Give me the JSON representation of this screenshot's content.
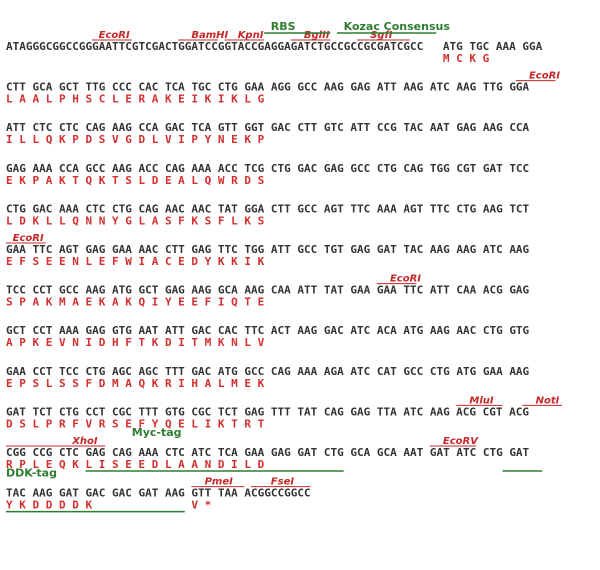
{
  "rows": [
    {
      "segments": [
        {
          "text": "ATAGGGCGGCCGGGAATTCGTCGACTGGATCCGGTACCGAGGAGATCTGCCGCCGCGATCGCC",
          "color": "#1a237e",
          "start": 0
        },
        {
          "text": "ATG TGC AAA GGA",
          "color": "#333333",
          "start": 66
        }
      ],
      "aa": [
        {
          "text": "M   C   K   G",
          "start": 66
        }
      ],
      "features": [
        {
          "name": "EcoRI",
          "kind": "enzyme",
          "label_col": 14,
          "line_from": 13,
          "line_to": 19
        },
        {
          "name": "BamHI",
          "kind": "enzyme",
          "label_col": 28,
          "line_from": 26,
          "line_to": 32
        },
        {
          "name": "KpnI",
          "kind": "enzyme",
          "label_col": 35,
          "line_from": 33,
          "line_to": 39
        },
        {
          "name": "BglII",
          "kind": "enzyme",
          "label_col": 45,
          "line_from": 43,
          "line_to": 49
        },
        {
          "name": "SgfI",
          "kind": "enzyme",
          "label_col": 55,
          "line_from": 53,
          "line_to": 61
        },
        {
          "name": "RBS",
          "kind": "tag",
          "label_col": 40,
          "line_from": 39,
          "line_to": 49
        },
        {
          "name": "Kozac Consensus",
          "kind": "tag",
          "label_col": 51,
          "line_from": 50,
          "line_to": 65
        }
      ]
    },
    {
      "segments": [
        {
          "text": "CTT GCA GCT TTG CCC CAC TCA TGC CTG GAA AGG GCC AAG GAG ATT AAG ATC AAG TTG GGA",
          "color": "#333333",
          "start": 0
        }
      ],
      "aa": [
        {
          "text": "L   A   A   L   P   H   S   C   L   E   R   A   K   E   I   K   I   K   L   G",
          "start": 0
        }
      ],
      "features": [
        {
          "name": "EcoRI",
          "kind": "enzyme",
          "label_col": 79,
          "line_from": 77,
          "line_to": 83
        }
      ]
    },
    {
      "segments": [
        {
          "text": "ATT CTC CTC CAG AAG CCA GAC TCA GTT GGT GAC CTT GTC ATT CCG TAC AAT GAG AAG CCA",
          "color": "#333333",
          "start": 0
        }
      ],
      "aa": [
        {
          "text": "I   L   L   Q   K   P   D   S   V   G   D   L   V   I   P   Y   N   E   K   P",
          "start": 0
        }
      ],
      "features": []
    },
    {
      "segments": [
        {
          "text": "GAG AAA CCA GCC AAG ACC CAG AAA ACC TCG CTG GAC GAG GCC CTG CAG TGG CGT GAT TCC",
          "color": "#333333",
          "start": 0
        }
      ],
      "aa": [
        {
          "text": "E   K   P   A   K   T   Q   K   T   S   L   D   E   A   L   Q   W   R   D   S",
          "start": 0
        }
      ],
      "features": []
    },
    {
      "segments": [
        {
          "text": "CTG GAC AAA CTC CTG CAG AAC AAC TAT GGA CTT GCC AGT TTC AAA AGT TTC CTG AAG TCT",
          "color": "#333333",
          "start": 0
        }
      ],
      "aa": [
        {
          "text": "L   D   K   L   L   Q   N   N   Y   G   L   A   S   F   K   S   F   L   K   S",
          "start": 0
        }
      ],
      "features": []
    },
    {
      "segments": [
        {
          "text": "GAA TTC AGT GAG GAA AAC CTT GAG TTC TGG ATT GCC TGT GAG GAT TAC AAG AAG ATC AAG",
          "color": "#333333",
          "start": 0
        }
      ],
      "aa": [
        {
          "text": "E   F   S   E   E   N   L   E   F   W   I   A   C   E   D   Y   K   K   I   K",
          "start": 0
        }
      ],
      "features": [
        {
          "name": "EcoRI",
          "kind": "enzyme",
          "label_col": 1,
          "line_from": 0,
          "line_to": 6
        }
      ]
    },
    {
      "segments": [
        {
          "text": "TCC CCT GCC AAG ATG GCT GAG AAG GCA AAG CAA ATT TAT GAA GAA TTC ATT CAA ACG GAG",
          "color": "#333333",
          "start": 0
        }
      ],
      "aa": [
        {
          "text": "S   P   A   K   M   A   E   K   A   K   Q   I   Y   E   E   F   I   Q   T   E",
          "start": 0
        }
      ],
      "features": [
        {
          "name": "EcoRI",
          "kind": "enzyme",
          "label_col": 58,
          "line_from": 56,
          "line_to": 62
        }
      ]
    },
    {
      "segments": [
        {
          "text": "GCT CCT AAA GAG GTG AAT ATT GAC CAC TTC ACT AAG GAC ATC ACA ATG AAG AAC CTG GTG",
          "color": "#333333",
          "start": 0
        }
      ],
      "aa": [
        {
          "text": "A   P   K   E   V   N   I   D   H   F   T   K   D   I   T   M   K   N   L   V",
          "start": 0
        }
      ],
      "features": []
    },
    {
      "segments": [
        {
          "text": "GAA CCT TCC CTG AGC AGC TTT GAC ATG GCC CAG AAA AGA ATC CAT GCC CTG ATG GAA AAG",
          "color": "#333333",
          "start": 0
        }
      ],
      "aa": [
        {
          "text": "E   P   S   L   S   S   F   D   M   A   Q   K   R   I   H   A   L   M   E   K",
          "start": 0
        }
      ],
      "features": []
    },
    {
      "segments": [
        {
          "text": "GAT TCT CTG CCT CGC TTT GTG CGC TCT GAG TTT TAT CAG GAG TTA ATC AAG",
          "color": "#333333",
          "start": 0
        },
        {
          "text": "ACG CGT ACG",
          "color": "#1a237e",
          "start": 68
        }
      ],
      "aa": [
        {
          "text": "D   S   L   P   R   F   V   R   S   E   F   Y   Q   E   L   I   K   T   R   T",
          "start": 0
        }
      ],
      "features": [
        {
          "name": "MluI",
          "kind": "enzyme",
          "label_col": 70,
          "line_from": 68,
          "line_to": 75
        },
        {
          "name": "NotI",
          "kind": "enzyme",
          "label_col": 80,
          "line_from": 78,
          "line_to": 84
        }
      ]
    },
    {
      "segments": [
        {
          "text": "CGG CCG CTC GAG CAG AAA CTC ATC TCA GAA GAG GAT CTG GCA GCA AAT GAT ATC CTG GAT",
          "color": "#1a237e",
          "start": 0
        }
      ],
      "aa": [
        {
          "text": "R   P   L   E   Q   K   L   I   S   E   E   D   L   A   A   N   D   I   L   D",
          "start": 0
        }
      ],
      "features": [
        {
          "name": "XhoI",
          "kind": "enzyme",
          "label_col": 10,
          "line_from": 0,
          "line_to": 15
        },
        {
          "name": "Myc-tag",
          "kind": "tag",
          "label_col": 19,
          "line_from": 0,
          "line_to": 0
        },
        {
          "name": "EcoRV",
          "kind": "enzyme",
          "label_col": 66,
          "line_from": 64,
          "line_to": 71
        }
      ],
      "underlines": [
        [
          12,
          51
        ],
        [
          75,
          81
        ]
      ]
    },
    {
      "segments": [
        {
          "text": "TAC AAG GAT GAC GAC GAT AAG",
          "color": "#1a237e",
          "start": 0
        },
        {
          "text": "GTT TAA ACGGCCGGCC",
          "color": "#1a237e",
          "start": 28
        }
      ],
      "aa": [
        {
          "text": "Y   K   D   D   D   D   K",
          "start": 0
        },
        {
          "text": "V   *",
          "start": 28
        }
      ],
      "features": [
        {
          "name": "DDK-tag",
          "kind": "tag",
          "label_col": 0,
          "line_from": 0,
          "line_to": 0
        },
        {
          "name": "PmeI",
          "kind": "enzyme",
          "label_col": 30,
          "line_from": 28,
          "line_to": 36
        },
        {
          "name": "FseI",
          "kind": "enzyme",
          "label_col": 40,
          "line_from": 37,
          "line_to": 46
        }
      ],
      "underlines": [
        [
          0,
          27
        ]
      ]
    }
  ]
}
